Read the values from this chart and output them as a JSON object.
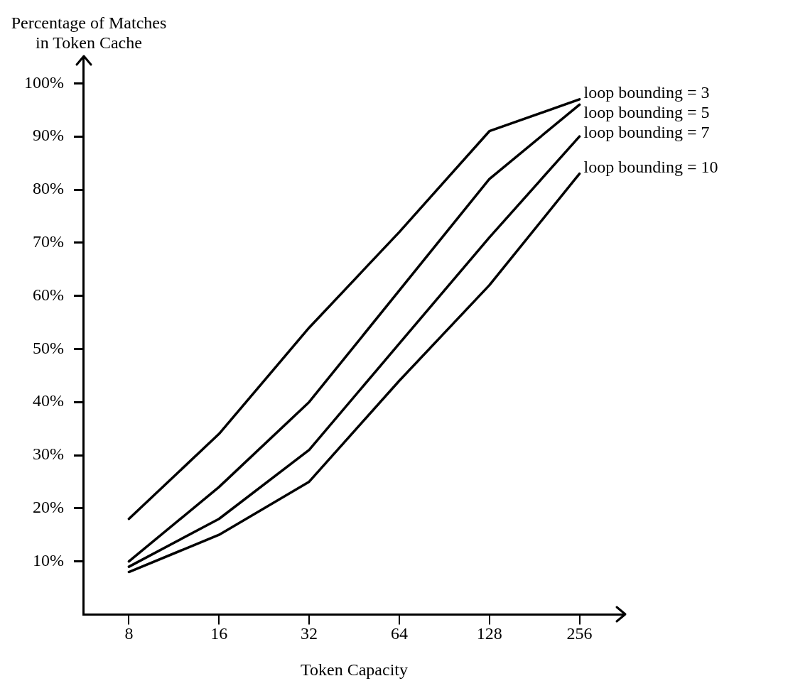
{
  "chart_data": {
    "type": "line",
    "ylabel": "Percentage of Matches in Token Cache",
    "xlabel": "Token Capacity",
    "categories": [
      "8",
      "16",
      "32",
      "64",
      "128",
      "256"
    ],
    "ylim": [
      0,
      105
    ],
    "yticks": [
      {
        "value": 10,
        "label": "10%"
      },
      {
        "value": 20,
        "label": "20%"
      },
      {
        "value": 30,
        "label": "30%"
      },
      {
        "value": 40,
        "label": "40%"
      },
      {
        "value": 50,
        "label": "50%"
      },
      {
        "value": 60,
        "label": "60%"
      },
      {
        "value": 70,
        "label": "70%"
      },
      {
        "value": 80,
        "label": "80%"
      },
      {
        "value": 90,
        "label": "90%"
      },
      {
        "value": 100,
        "label": "100%"
      }
    ],
    "grid": false,
    "legend": false,
    "marker": "none",
    "line_style": "solid",
    "series": [
      {
        "name": "loop bounding = 3",
        "color": "#000000",
        "values": [
          18,
          34,
          54,
          72,
          91,
          97
        ]
      },
      {
        "name": "loop bounding = 5",
        "color": "#000000",
        "values": [
          10,
          24,
          40,
          61,
          82,
          96
        ]
      },
      {
        "name": "loop bounding = 7",
        "color": "#000000",
        "values": [
          9,
          18,
          31,
          51,
          71,
          90
        ]
      },
      {
        "name": "loop bounding = 10",
        "color": "#000000",
        "values": [
          8,
          15,
          25,
          44,
          62,
          83
        ]
      }
    ]
  }
}
